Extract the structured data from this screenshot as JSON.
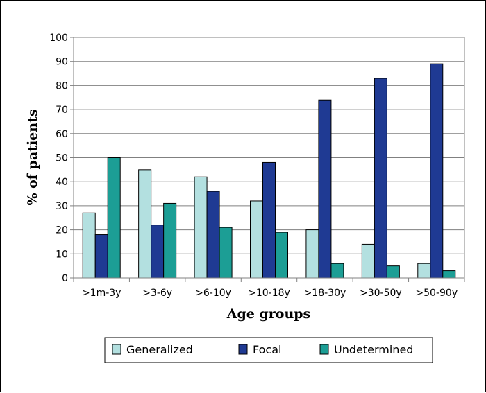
{
  "chart_data": {
    "type": "bar",
    "title": "",
    "xlabel": "Age groups",
    "ylabel": "% of patients",
    "ylim": [
      0,
      100
    ],
    "yticks": [
      0,
      10,
      20,
      30,
      40,
      50,
      60,
      70,
      80,
      90,
      100
    ],
    "grid": true,
    "legend_position": "bottom",
    "categories": [
      ">1m-3y",
      ">3-6y",
      ">6-10y",
      ">10-18y",
      ">18-30y",
      ">30-50y",
      ">50-90y"
    ],
    "series": [
      {
        "name": "Generalized",
        "color": "#b3e0e0",
        "values": [
          27,
          45,
          42,
          32,
          20,
          14,
          6
        ]
      },
      {
        "name": "Focal",
        "color": "#1f3a93",
        "values": [
          18,
          22,
          36,
          48,
          74,
          83,
          89
        ]
      },
      {
        "name": "Undetermined",
        "color": "#1c9e95",
        "values": [
          50,
          31,
          21,
          19,
          6,
          5,
          3
        ]
      }
    ]
  }
}
